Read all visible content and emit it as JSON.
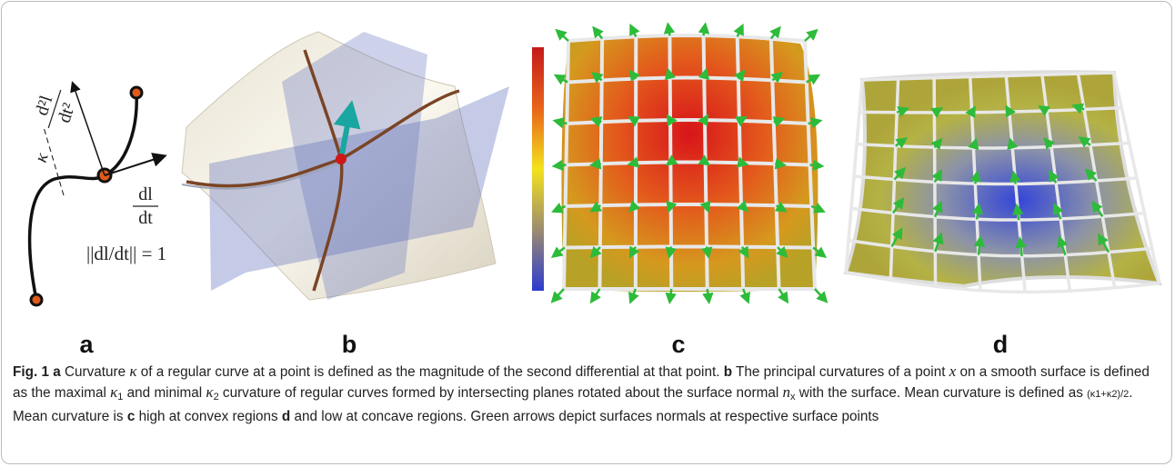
{
  "panels": {
    "a": "a",
    "b": "b",
    "c": "c",
    "d": "d"
  },
  "panel_a": {
    "second_derivative_numerator": "d²l",
    "second_derivative_denominator": "dt²",
    "curvature": "κ",
    "tangent_numerator": "dl",
    "tangent_denominator": "dt",
    "norm_equation": "||dl/dt|| = 1"
  },
  "caption": {
    "parts": [
      {
        "text": "Fig. 1 a",
        "style": "bold"
      },
      {
        "text": " Curvature ",
        "style": "normal"
      },
      {
        "text": "κ",
        "style": "italic"
      },
      {
        "text": " of a regular curve at a point is defined as the magnitude of the second differential at that point. ",
        "style": "normal"
      },
      {
        "text": "b",
        "style": "bold"
      },
      {
        "text": " The principal curvatures of a point ",
        "style": "normal"
      },
      {
        "text": "x",
        "style": "italic"
      },
      {
        "text": " on a smooth surface is defined as the maximal ",
        "style": "normal"
      },
      {
        "text": "κ",
        "style": "italic"
      },
      {
        "text": "1",
        "style": "sub"
      },
      {
        "text": " and minimal ",
        "style": "normal"
      },
      {
        "text": "κ",
        "style": "italic"
      },
      {
        "text": "2",
        "style": "sub"
      },
      {
        "text": " curvature of regular curves formed by intersecting planes rotated about the surface normal ",
        "style": "normal"
      },
      {
        "text": "n",
        "style": "italic"
      },
      {
        "text": "x",
        "style": "sub"
      },
      {
        "text": " with the surface. Mean curvature is defined as ",
        "style": "normal"
      },
      {
        "text": "(κ1+κ2)/2",
        "style": "small"
      },
      {
        "text": ". Mean curvature is ",
        "style": "normal"
      },
      {
        "text": "c",
        "style": "bold"
      },
      {
        "text": " high at convex regions ",
        "style": "normal"
      },
      {
        "text": "d",
        "style": "bold"
      },
      {
        "text": " and low at concave regions. Green arrows depict surfaces normals at respective surface points",
        "style": "normal"
      }
    ]
  }
}
